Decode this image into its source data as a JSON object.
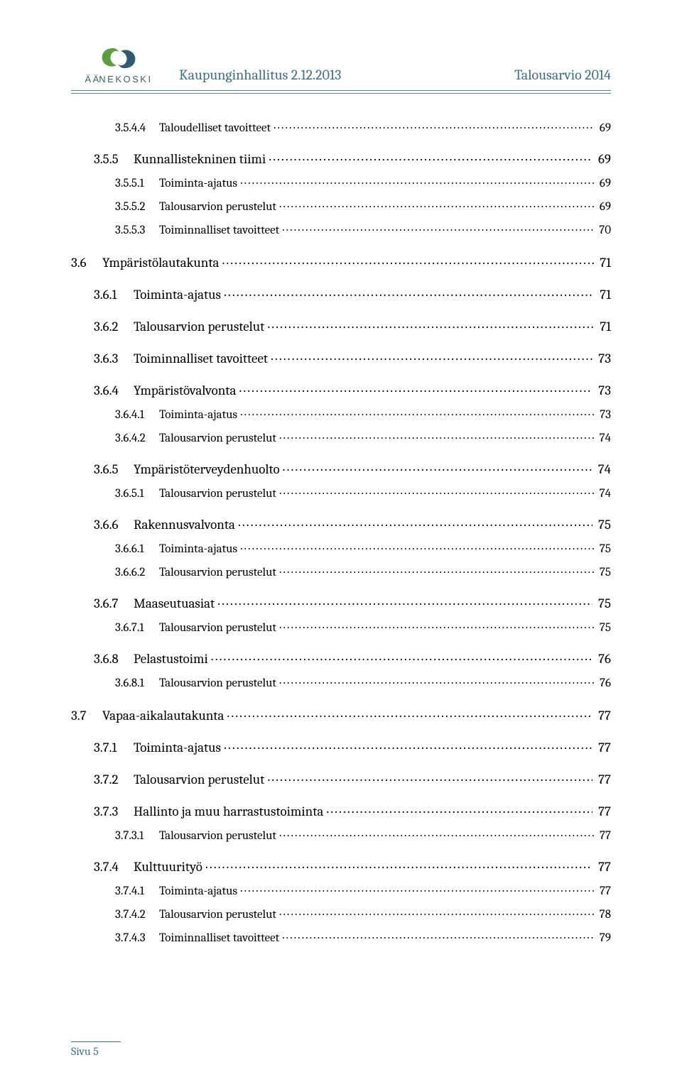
{
  "header": {
    "left": "Kaupunginhallitus 2.12.2013",
    "right": "Talousarvio 2014",
    "logo_word_prefix": "Ä",
    "logo_word_dotted": "Ä",
    "logo_word_rest": "NEKOSKI",
    "logo_colors": {
      "green": "#5a9e3d",
      "navy": "#2f5a73"
    },
    "rule_color": "#4c84a0",
    "text_color": "#3d6f86"
  },
  "toc": [
    {
      "lvl": 3,
      "num": "3.5.4.4",
      "title": "Taloudelliset tavoitteet",
      "page": "69"
    },
    {
      "lvl": 2,
      "num": "3.5.5",
      "title": "Kunnallistekninen tiimi",
      "page": "69"
    },
    {
      "lvl": 3,
      "num": "3.5.5.1",
      "title": "Toiminta-ajatus",
      "page": "69"
    },
    {
      "lvl": 3,
      "num": "3.5.5.2",
      "title": "Talousarvion perustelut",
      "page": "69"
    },
    {
      "lvl": 3,
      "num": "3.5.5.3",
      "title": "Toiminnalliset tavoitteet",
      "page": "70"
    },
    {
      "lvl": 1,
      "num": "3.6",
      "title": "Ympäristölautakunta",
      "page": "71"
    },
    {
      "lvl": 2,
      "num": "3.6.1",
      "title": "Toiminta-ajatus",
      "page": "71"
    },
    {
      "lvl": 2,
      "num": "3.6.2",
      "title": "Talousarvion perustelut",
      "page": "71"
    },
    {
      "lvl": 2,
      "num": "3.6.3",
      "title": "Toiminnalliset tavoitteet",
      "page": "73"
    },
    {
      "lvl": 2,
      "num": "3.6.4",
      "title": "Ympäristövalvonta",
      "page": "73"
    },
    {
      "lvl": 3,
      "num": "3.6.4.1",
      "title": "Toiminta-ajatus",
      "page": "73"
    },
    {
      "lvl": 3,
      "num": "3.6.4.2",
      "title": "Talousarvion perustelut",
      "page": "74"
    },
    {
      "lvl": 2,
      "num": "3.6.5",
      "title": "Ympäristöterveydenhuolto",
      "page": "74"
    },
    {
      "lvl": 3,
      "num": "3.6.5.1",
      "title": "Talousarvion perustelut",
      "page": "74"
    },
    {
      "lvl": 2,
      "num": "3.6.6",
      "title": "Rakennusvalvonta",
      "page": "75"
    },
    {
      "lvl": 3,
      "num": "3.6.6.1",
      "title": "Toiminta-ajatus",
      "page": "75"
    },
    {
      "lvl": 3,
      "num": "3.6.6.2",
      "title": "Talousarvion perustelut",
      "page": "75"
    },
    {
      "lvl": 2,
      "num": "3.6.7",
      "title": "Maaseutuasiat",
      "page": "75"
    },
    {
      "lvl": 3,
      "num": "3.6.7.1",
      "title": "Talousarvion perustelut",
      "page": "75"
    },
    {
      "lvl": 2,
      "num": "3.6.8",
      "title": "Pelastustoimi",
      "page": "76"
    },
    {
      "lvl": 3,
      "num": "3.6.8.1",
      "title": "Talousarvion perustelut",
      "page": "76"
    },
    {
      "lvl": 1,
      "num": "3.7",
      "title": "Vapaa-aikalautakunta",
      "page": "77"
    },
    {
      "lvl": 2,
      "num": "3.7.1",
      "title": "Toiminta-ajatus",
      "page": "77"
    },
    {
      "lvl": 2,
      "num": "3.7.2",
      "title": "Talousarvion perustelut",
      "page": "77"
    },
    {
      "lvl": 2,
      "num": "3.7.3",
      "title": "Hallinto ja muu harrastustoiminta",
      "page": "77"
    },
    {
      "lvl": 3,
      "num": "3.7.3.1",
      "title": "Talousarvion perustelut",
      "page": "77"
    },
    {
      "lvl": 2,
      "num": "3.7.4",
      "title": "Kulttuurityö",
      "page": "77"
    },
    {
      "lvl": 3,
      "num": "3.7.4.1",
      "title": "Toiminta-ajatus",
      "page": "77"
    },
    {
      "lvl": 3,
      "num": "3.7.4.2",
      "title": "Talousarvion perustelut",
      "page": "78"
    },
    {
      "lvl": 3,
      "num": "3.7.4.3",
      "title": "Toiminnalliset tavoitteet",
      "page": "79"
    }
  ],
  "footer": {
    "label": "Sivu 5"
  }
}
